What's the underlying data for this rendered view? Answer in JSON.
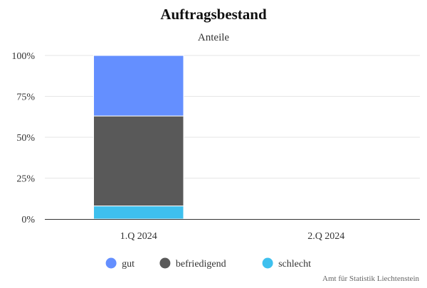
{
  "chart_data": {
    "type": "bar",
    "stacked": true,
    "title": "Auftragsbestand",
    "subtitle": "Anteile",
    "categories": [
      "1.Q 2024",
      "2.Q 2024"
    ],
    "series": [
      {
        "name": "gut",
        "color": "#648FFF",
        "values": [
          37,
          null
        ]
      },
      {
        "name": "befriedigend",
        "color": "#595959",
        "values": [
          55,
          null
        ]
      },
      {
        "name": "schlecht",
        "color": "#3EC0EE",
        "values": [
          8,
          null
        ]
      }
    ],
    "ylim": [
      0,
      100
    ],
    "yticks": [
      "0%",
      "25%",
      "50%",
      "75%",
      "100%"
    ],
    "grid": true,
    "legend_placement": "bottom",
    "credits": "Amt für Statistik Liechtenstein"
  }
}
